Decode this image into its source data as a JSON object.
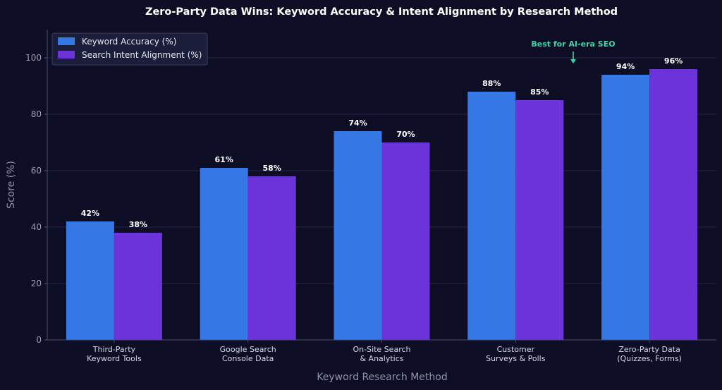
{
  "chart_data": {
    "type": "bar",
    "title": "Zero-Party Data Wins: Keyword Accuracy & Intent Alignment by Research Method",
    "xlabel": "Keyword Research Method",
    "ylabel": "Score (%)",
    "ylim": [
      0,
      110
    ],
    "yticks": [
      0,
      20,
      40,
      60,
      80,
      100
    ],
    "grid": true,
    "legend_position": "top-left",
    "categories": [
      [
        "Third-Party",
        "Keyword Tools"
      ],
      [
        "Google Search",
        "Console Data"
      ],
      [
        "On-Site Search",
        "& Analytics"
      ],
      [
        "Customer",
        "Surveys & Polls"
      ],
      [
        "Zero-Party Data",
        "(Quizzes, Forms)"
      ]
    ],
    "series": [
      {
        "name": "Keyword Accuracy (%)",
        "color": "#3578e5",
        "values": [
          42,
          61,
          74,
          88,
          94
        ]
      },
      {
        "name": "Search Intent Alignment (%)",
        "color": "#6c33d8",
        "values": [
          38,
          58,
          70,
          85,
          96
        ]
      }
    ],
    "value_suffix": "%",
    "annotation": {
      "text": "Best for AI-era SEO",
      "category_index": 4,
      "color": "#3fd3a3"
    },
    "colors": {
      "background": "#0d0e26",
      "grid": "#24264a",
      "axis": "#4a4d6e"
    }
  }
}
